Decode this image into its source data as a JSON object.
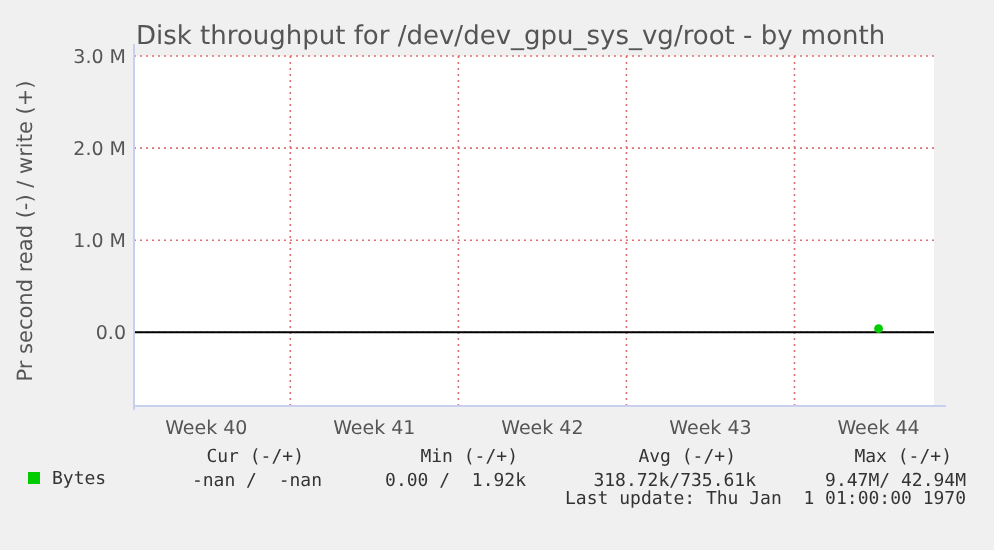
{
  "chart_data": {
    "type": "line",
    "title": "Disk throughput for /dev/dev_gpu_sys_vg/root - by month",
    "ylabel": "Pr second read (-) / write (+)",
    "categories": [
      "Week 40",
      "Week 41",
      "Week 42",
      "Week 43",
      "Week 44"
    ],
    "series": [
      {
        "name": "Bytes",
        "color": "#00cc00",
        "values": [
          null,
          null,
          null,
          null,
          0.04
        ]
      }
    ],
    "ylim": [
      -0.8,
      3.0
    ],
    "yticks": [
      {
        "value": 0,
        "label": "0.0"
      },
      {
        "value": 1,
        "label": "1.0 M"
      },
      {
        "value": 2,
        "label": "2.0 M"
      },
      {
        "value": 3,
        "label": "3.0 M"
      }
    ],
    "ref_lines": [
      {
        "axis": "y",
        "value": 0,
        "color": "#000000"
      }
    ],
    "grid": true,
    "legend": "bottom left",
    "marker": "circle",
    "annotations": [
      "Cur (-/+)",
      "Min (-/+)",
      "Avg (-/+)",
      "Max (-/+)",
      "-nan /  -nan",
      "0.00 /  1.92k",
      "318.72k/735.61k",
      "9.47M/ 42.94M",
      "Last update: Thu Jan  1 01:00:00 1970"
    ]
  }
}
